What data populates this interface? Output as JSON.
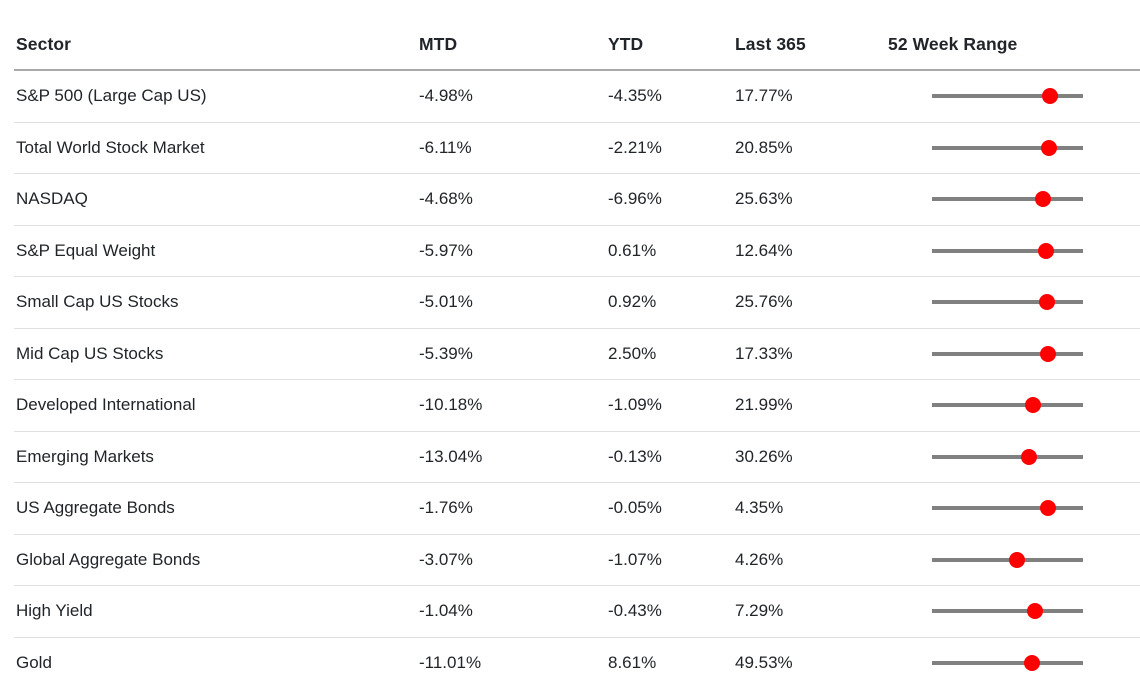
{
  "colors": {
    "dot_red": "#ff0000",
    "track_gray": "#808080",
    "header_rule_gray": "#a9a9a9",
    "row_rule_gray": "#e0e0e0",
    "text": "#212529",
    "background": "#ffffff"
  },
  "chart_data": {
    "type": "table",
    "columns": [
      "Sector",
      "MTD",
      "YTD",
      "Last 365",
      "52 Week Range"
    ],
    "range_note": "range_pos is the red dot position as percent along the 52-week range track (0 = 52wk low, 100 = 52wk high)",
    "rows": [
      {
        "sector": "S&P 500 (Large Cap US)",
        "mtd": "-4.98%",
        "ytd": "-4.35%",
        "last365": "17.77%",
        "range_pos": 78
      },
      {
        "sector": "Total World Stock Market",
        "mtd": "-6.11%",
        "ytd": "-2.21%",
        "last365": "20.85%",
        "range_pos": 77.5
      },
      {
        "sector": "NASDAQ",
        "mtd": "-4.68%",
        "ytd": "-6.96%",
        "last365": "25.63%",
        "range_pos": 73.5
      },
      {
        "sector": "S&P Equal Weight",
        "mtd": "-5.97%",
        "ytd": "0.61%",
        "last365": "12.64%",
        "range_pos": 75.5
      },
      {
        "sector": "Small Cap US Stocks",
        "mtd": "-5.01%",
        "ytd": "0.92%",
        "last365": "25.76%",
        "range_pos": 76
      },
      {
        "sector": "Mid Cap US Stocks",
        "mtd": "-5.39%",
        "ytd": "2.50%",
        "last365": "17.33%",
        "range_pos": 77
      },
      {
        "sector": "Developed International",
        "mtd": "-10.18%",
        "ytd": "-1.09%",
        "last365": "21.99%",
        "range_pos": 67
      },
      {
        "sector": "Emerging Markets",
        "mtd": "-13.04%",
        "ytd": "-0.13%",
        "last365": "30.26%",
        "range_pos": 64
      },
      {
        "sector": "US Aggregate Bonds",
        "mtd": "-1.76%",
        "ytd": "-0.05%",
        "last365": "4.35%",
        "range_pos": 76.5
      },
      {
        "sector": "Global Aggregate Bonds",
        "mtd": "-3.07%",
        "ytd": "-1.07%",
        "last365": "4.26%",
        "range_pos": 56
      },
      {
        "sector": "High Yield",
        "mtd": "-1.04%",
        "ytd": "-0.43%",
        "last365": "7.29%",
        "range_pos": 68
      },
      {
        "sector": "Gold",
        "mtd": "-11.01%",
        "ytd": "8.61%",
        "last365": "49.53%",
        "range_pos": 66.5
      }
    ]
  }
}
